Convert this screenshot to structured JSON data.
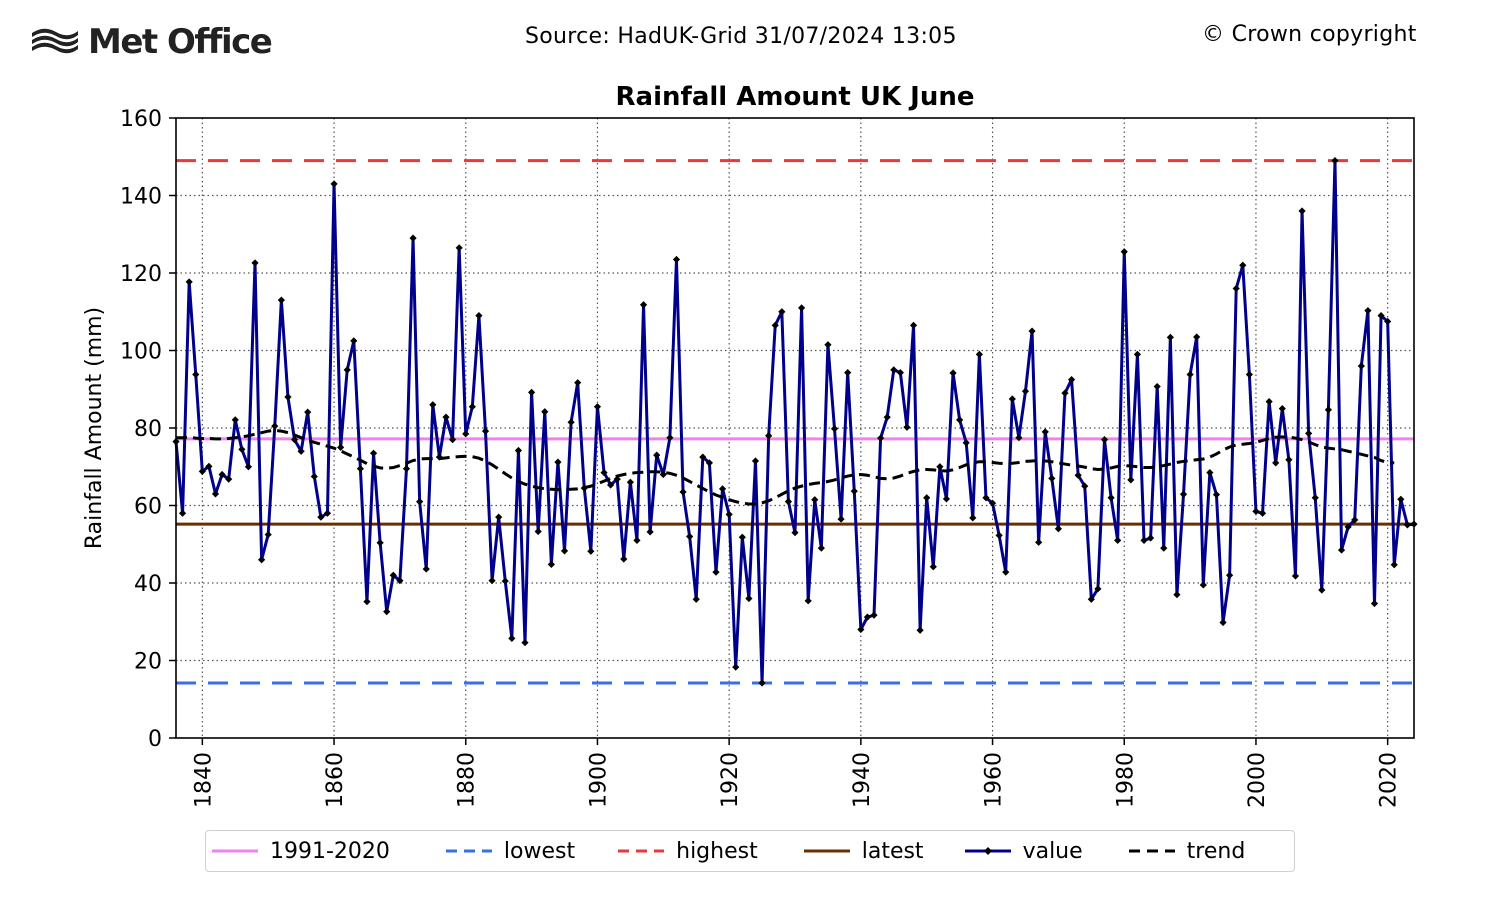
{
  "header": {
    "logo_text": "Met Office",
    "source": "Source: HadUK-Grid 31/07/2024 13:05",
    "copyright": "© Crown copyright"
  },
  "colors": {
    "baseline": "#ee82ee",
    "lowest": "#3a6ee8",
    "highest": "#e83a3a",
    "latest": "#6b2e00",
    "value_line": "#00008b",
    "value_marker": "#000000",
    "trend": "#000000"
  },
  "legend": [
    {
      "label": "1991-2020",
      "key": "baseline",
      "style": "solid"
    },
    {
      "label": "lowest",
      "key": "lowest",
      "style": "dashed"
    },
    {
      "label": "highest",
      "key": "highest",
      "style": "dashed"
    },
    {
      "label": "latest",
      "key": "latest",
      "style": "solid"
    },
    {
      "label": "value",
      "key": "value_line",
      "style": "marker"
    },
    {
      "label": "trend",
      "key": "trend",
      "style": "dashed"
    }
  ],
  "chart_data": {
    "type": "line",
    "title": "Rainfall Amount UK June",
    "ylabel": "Rainfall Amount (mm)",
    "xlabel": "",
    "xlim": [
      1836,
      2024
    ],
    "ylim": [
      0,
      160
    ],
    "xticks": [
      1840,
      1860,
      1880,
      1900,
      1920,
      1940,
      1960,
      1980,
      2000,
      2020
    ],
    "yticks": [
      0,
      20,
      40,
      60,
      80,
      100,
      120,
      140,
      160
    ],
    "grid": true,
    "legend_position": "bottom",
    "reference_lines": {
      "1991-2020": 77.2,
      "lowest": 14.2,
      "highest": 149,
      "latest": 55.2
    },
    "x_start": 1836,
    "values": [
      76.5,
      58,
      117.7,
      93.8,
      68.8,
      70.1,
      63,
      68,
      66.8,
      82.1,
      74.5,
      70,
      122.6,
      46,
      52.5,
      80.5,
      113,
      88,
      77,
      74,
      84.1,
      67.5,
      57,
      58,
      143,
      75,
      95,
      102.5,
      69.5,
      35.2,
      73.5,
      50.4,
      32.6,
      42,
      40.6,
      69.5,
      129,
      61,
      43.6,
      86,
      72.5,
      82.8,
      77,
      126.5,
      78.5,
      85.5,
      109,
      79.2,
      40.6,
      57,
      40.5,
      25.7,
      74.2,
      24.6,
      89.2,
      53.3,
      84.2,
      44.8,
      71.2,
      48.3,
      81.5,
      91.7,
      64.5,
      48.2,
      85.5,
      68.5,
      65.3,
      66.8,
      46.2,
      66,
      51,
      111.8,
      53.2,
      73,
      68,
      77.5,
      123.5,
      63.5,
      52,
      35.8,
      72.5,
      71,
      42.8,
      64.3,
      57.7,
      18.3,
      51.8,
      36,
      71.5,
      14.2,
      78,
      106.5,
      110,
      61,
      53,
      111,
      35.4,
      61.5,
      49,
      101.5,
      79.8,
      56.5,
      94.3,
      63.7,
      28,
      31.2,
      31.7,
      77.4,
      82.8,
      95,
      94.3,
      80.2,
      106.5,
      27.8,
      62,
      44.2,
      70,
      61.7,
      94.2,
      82.1,
      76.2,
      56.8,
      99,
      62,
      60.6,
      52.3,
      42.8,
      87.5,
      77.5,
      89.5,
      105,
      50.5,
      79,
      67,
      54,
      89,
      92.5,
      67.8,
      65,
      35.8,
      38.5,
      77,
      62,
      51,
      125.5,
      66.6,
      99,
      51,
      51.6,
      90.7,
      49,
      103.4,
      37,
      62.9,
      93.8,
      103.5,
      39.5,
      68.5,
      62.8,
      29.8,
      42,
      116,
      122,
      93.8,
      58.5,
      58,
      86.8,
      71,
      85,
      71.8,
      41.8,
      136,
      78.6,
      62,
      38.2,
      84.7,
      149,
      48.5,
      54.5,
      56.3,
      96,
      110.3,
      34.7,
      109,
      107.5,
      44.7,
      61.6,
      55,
      55.2
    ],
    "trend": [
      77.5,
      77.5,
      77.6,
      77.4,
      77.3,
      77.3,
      77.2,
      77.2,
      77.3,
      77.5,
      77.7,
      78,
      78.4,
      78.8,
      79.2,
      79.4,
      79.2,
      78.8,
      78.2,
      77.5,
      76.8,
      76.3,
      75.8,
      75.3,
      74.8,
      74.1,
      73.3,
      72.5,
      71.7,
      70.8,
      70.2,
      69.7,
      69.6,
      69.8,
      70.3,
      70.9,
      71.6,
      72,
      72.1,
      72.1,
      72.1,
      72.3,
      72.5,
      72.6,
      72.7,
      72.6,
      72.2,
      71.5,
      70.5,
      69.4,
      68.2,
      67.1,
      66.2,
      65.5,
      65,
      64.6,
      64.3,
      64.2,
      64.1,
      64.1,
      64.2,
      64.3,
      64.6,
      65,
      65.6,
      66.3,
      67,
      67.6,
      68,
      68.3,
      68.5,
      68.6,
      68.7,
      68.7,
      68.6,
      68.3,
      67.8,
      67.1,
      66.2,
      65.3,
      64.4,
      63.5,
      62.7,
      62.1,
      61.5,
      61,
      60.6,
      60.4,
      60.4,
      60.7,
      61.2,
      62,
      62.9,
      63.8,
      64.5,
      65,
      65.4,
      65.7,
      65.9,
      66.2,
      66.6,
      67.1,
      67.6,
      67.9,
      68,
      67.8,
      67.4,
      67,
      66.9,
      67.1,
      67.6,
      68.3,
      68.8,
      69.2,
      69.3,
      69.2,
      69,
      68.9,
      69.2,
      69.8,
      70.5,
      71,
      71.3,
      71.3,
      71.1,
      70.9,
      70.8,
      70.9,
      71.1,
      71.4,
      71.5,
      71.6,
      71.5,
      71.3,
      71,
      70.7,
      70.4,
      70.2,
      69.9,
      69.5,
      69.3,
      69.4,
      69.7,
      70.1,
      70.3,
      70.2,
      70,
      69.8,
      69.8,
      70,
      70.3,
      70.7,
      71.1,
      71.4,
      71.6,
      71.8,
      72,
      72.5,
      73.3,
      74.3,
      75.1,
      75.6,
      75.8,
      76,
      76.3,
      76.8,
      77.3,
      77.6,
      77.7,
      77.6,
      77.4,
      77,
      76.4,
      75.7,
      75.1,
      74.8,
      74.6,
      74.4,
      74,
      73.6,
      73.2,
      72.8,
      72.4,
      71.6,
      71.1,
      71
    ]
  }
}
